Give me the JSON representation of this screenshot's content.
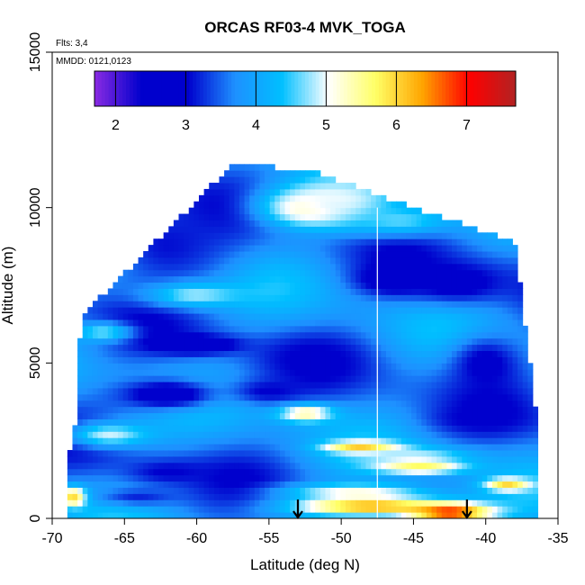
{
  "chart_data": {
    "type": "heatmap",
    "title": "ORCAS RF03-4 MVK_TOGA",
    "flights_note": "Flts: 3,4",
    "dates_note": "MMDD: 0121,0123",
    "xlabel": "Latitude (deg N)",
    "ylabel": "Altitude (m)",
    "xlim": [
      -70,
      -35
    ],
    "ylim": [
      0,
      15000
    ],
    "x_ticks": [
      -70,
      -65,
      -60,
      -55,
      -50,
      -45,
      -40,
      -35
    ],
    "y_ticks": [
      0,
      5000,
      10000,
      15000
    ],
    "x_tick_labels": [
      "-70",
      "-65",
      "-60",
      "-55",
      "-50",
      "-45",
      "-40",
      "-35"
    ],
    "y_tick_labels": [
      "0",
      "5000",
      "10000",
      "15000"
    ],
    "colorbar": {
      "ticks": [
        2,
        3,
        4,
        5,
        6,
        7
      ],
      "tick_labels": [
        "2",
        "3",
        "4",
        "5",
        "6",
        "7"
      ],
      "range": [
        1.7,
        7.7
      ],
      "colors": [
        "#8a2be2",
        "#0000cd",
        "#0000cd",
        "#1e90ff",
        "#00bfff",
        "#ffffff",
        "#ffff66",
        "#ffa500",
        "#ff0000",
        "#b22222"
      ]
    },
    "domain_outline": [
      [
        -69.0,
        0
      ],
      [
        -36.5,
        0
      ],
      [
        -36.5,
        3400
      ],
      [
        -38.0,
        8900
      ],
      [
        -45.0,
        10000
      ],
      [
        -52.0,
        11200
      ],
      [
        -57.5,
        11400
      ],
      [
        -68.0,
        6500
      ],
      [
        -68.5,
        2400
      ],
      [
        -69.0,
        1900
      ]
    ],
    "features": [
      {
        "lat": -52.0,
        "alt": 10000,
        "value": 5.6,
        "sx": 3.5,
        "sy": 600
      },
      {
        "lat": -50.5,
        "alt": 10200,
        "value": 5.0,
        "sx": 4.0,
        "sy": 700
      },
      {
        "lat": -46.0,
        "alt": 9600,
        "value": 4.6,
        "sx": 4.0,
        "sy": 500
      },
      {
        "lat": -62.0,
        "alt": 8800,
        "value": 3.1,
        "sx": 4.5,
        "sy": 1400
      },
      {
        "lat": -42.0,
        "alt": 7600,
        "value": 2.8,
        "sx": 3.5,
        "sy": 700
      },
      {
        "lat": -46.5,
        "alt": 7700,
        "value": 2.7,
        "sx": 2.5,
        "sy": 500
      },
      {
        "lat": -60.0,
        "alt": 7200,
        "value": 4.8,
        "sx": 3.5,
        "sy": 400
      },
      {
        "lat": -66.5,
        "alt": 6000,
        "value": 4.7,
        "sx": 2.0,
        "sy": 300
      },
      {
        "lat": -60.0,
        "alt": 5600,
        "value": 2.5,
        "sx": 3.0,
        "sy": 300
      },
      {
        "lat": -52.0,
        "alt": 5200,
        "value": 3.0,
        "sx": 3.0,
        "sy": 600
      },
      {
        "lat": -40.0,
        "alt": 5000,
        "value": 2.9,
        "sx": 2.5,
        "sy": 900
      },
      {
        "lat": -62.0,
        "alt": 4000,
        "value": 2.6,
        "sx": 3.5,
        "sy": 500
      },
      {
        "lat": -52.5,
        "alt": 3400,
        "value": 5.5,
        "sx": 2.0,
        "sy": 300
      },
      {
        "lat": -55.0,
        "alt": 4100,
        "value": 3.0,
        "sx": 2.5,
        "sy": 400
      },
      {
        "lat": -40.5,
        "alt": 3200,
        "value": 3.0,
        "sx": 3.0,
        "sy": 400
      },
      {
        "lat": -66.0,
        "alt": 2700,
        "value": 4.9,
        "sx": 3.0,
        "sy": 400
      },
      {
        "lat": -48.5,
        "alt": 2300,
        "value": 6.3,
        "sx": 2.5,
        "sy": 180
      },
      {
        "lat": -45.0,
        "alt": 2000,
        "value": 4.9,
        "sx": 4.0,
        "sy": 300
      },
      {
        "lat": -62.0,
        "alt": 1500,
        "value": 3.0,
        "sx": 3.0,
        "sy": 400
      },
      {
        "lat": -44.5,
        "alt": 1650,
        "value": 5.8,
        "sx": 3.0,
        "sy": 200
      },
      {
        "lat": -38.5,
        "alt": 1100,
        "value": 6.0,
        "sx": 1.5,
        "sy": 200
      },
      {
        "lat": -49.0,
        "alt": 900,
        "value": 5.0,
        "sx": 5.0,
        "sy": 250
      },
      {
        "lat": -48.0,
        "alt": 400,
        "value": 6.3,
        "sx": 5.5,
        "sy": 330
      },
      {
        "lat": -42.5,
        "alt": 200,
        "value": 7.0,
        "sx": 3.0,
        "sy": 300
      },
      {
        "lat": -68.5,
        "alt": 700,
        "value": 6.3,
        "sx": 0.9,
        "sy": 300
      },
      {
        "lat": -64.0,
        "alt": 700,
        "value": 3.2,
        "sx": 3.0,
        "sy": 300
      }
    ],
    "arrows_lat": [
      -53.0,
      -41.3
    ],
    "vertical_line_lat": -47.5
  }
}
